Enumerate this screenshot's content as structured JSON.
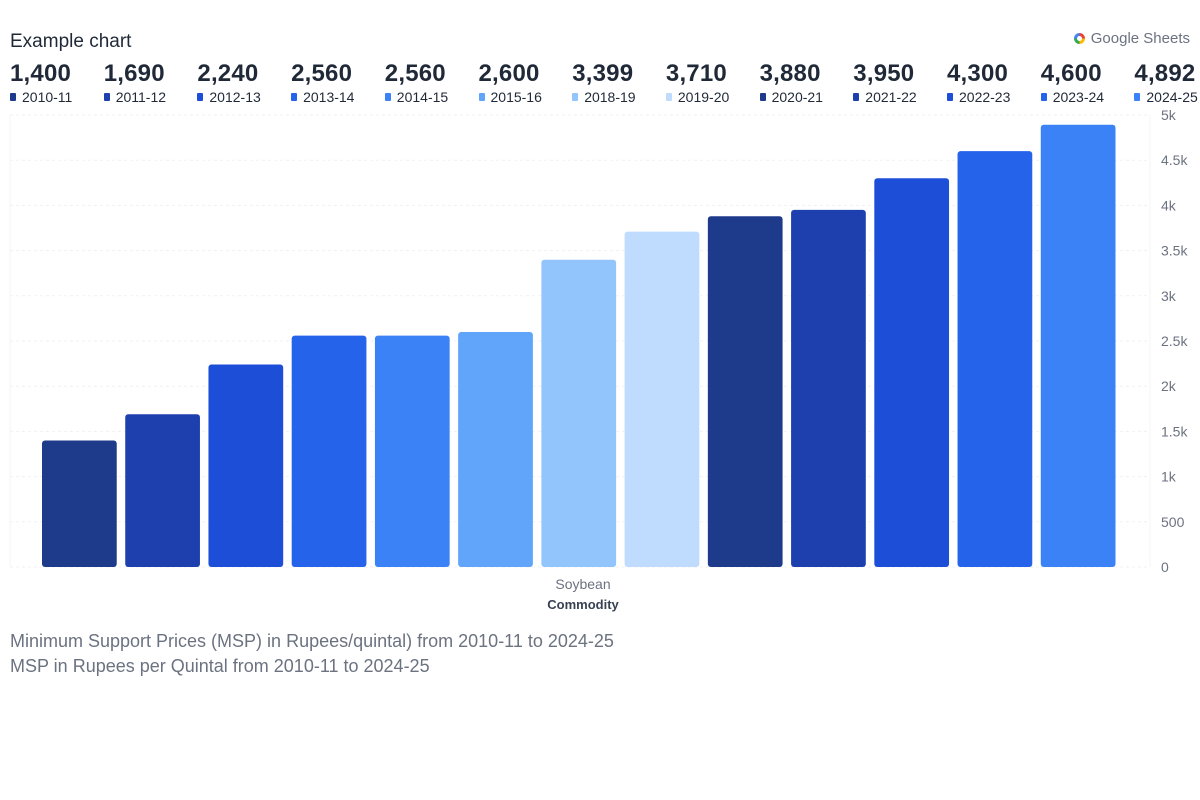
{
  "header": {
    "title": "Example chart",
    "source_label": "Google Sheets",
    "source_icon": "google-icon"
  },
  "captions": {
    "line1": "Minimum Support Prices (MSP) in Rupees/quintal) from 2010-11 to 2024-25",
    "line2": "MSP in Rupees per Quintal from 2010-11 to 2024-25"
  },
  "legend": [
    {
      "value": "1,400",
      "label": "2010-11"
    },
    {
      "value": "1,690",
      "label": "2011-12"
    },
    {
      "value": "2,240",
      "label": "2012-13"
    },
    {
      "value": "2,560",
      "label": "2013-14"
    },
    {
      "value": "2,560",
      "label": "2014-15"
    },
    {
      "value": "2,600",
      "label": "2015-16"
    },
    {
      "value": "3,399",
      "label": "2018-19"
    },
    {
      "value": "3,710",
      "label": "2019-20"
    },
    {
      "value": "3,880",
      "label": "2020-21"
    },
    {
      "value": "3,950",
      "label": "2021-22"
    },
    {
      "value": "4,300",
      "label": "2022-23"
    },
    {
      "value": "4,600",
      "label": "2023-24"
    },
    {
      "value": "4,892",
      "label": "2024-25"
    }
  ],
  "chart_data": {
    "type": "bar",
    "categories": [
      "Soybean"
    ],
    "xlabel": "Commodity",
    "ylabel": "",
    "ylim": [
      0,
      5000
    ],
    "yticks": [
      0,
      500,
      1000,
      1500,
      2000,
      2500,
      3000,
      3500,
      4000,
      4500,
      5000
    ],
    "ytick_labels": [
      "0",
      "500",
      "1k",
      "1.5k",
      "2k",
      "2.5k",
      "3k",
      "3.5k",
      "4k",
      "4.5k",
      "5k"
    ],
    "y_axis_position": "right",
    "grid": true,
    "legend_position": "top",
    "series": [
      {
        "name": "2010-11",
        "values": [
          1400
        ],
        "color": "#1e3a8a"
      },
      {
        "name": "2011-12",
        "values": [
          1690
        ],
        "color": "#1e40af"
      },
      {
        "name": "2012-13",
        "values": [
          2240
        ],
        "color": "#1d4ed8"
      },
      {
        "name": "2013-14",
        "values": [
          2560
        ],
        "color": "#2563eb"
      },
      {
        "name": "2014-15",
        "values": [
          2560
        ],
        "color": "#3b82f6"
      },
      {
        "name": "2015-16",
        "values": [
          2600
        ],
        "color": "#60a5fa"
      },
      {
        "name": "2018-19",
        "values": [
          3399
        ],
        "color": "#93c5fd"
      },
      {
        "name": "2019-20",
        "values": [
          3710
        ],
        "color": "#bfdbfe"
      },
      {
        "name": "2020-21",
        "values": [
          3880
        ],
        "color": "#1e3a8a"
      },
      {
        "name": "2021-22",
        "values": [
          3950
        ],
        "color": "#1e40af"
      },
      {
        "name": "2022-23",
        "values": [
          4300
        ],
        "color": "#1d4ed8"
      },
      {
        "name": "2023-24",
        "values": [
          4600
        ],
        "color": "#2563eb"
      },
      {
        "name": "2024-25",
        "values": [
          4892
        ],
        "color": "#3b82f6"
      }
    ]
  }
}
